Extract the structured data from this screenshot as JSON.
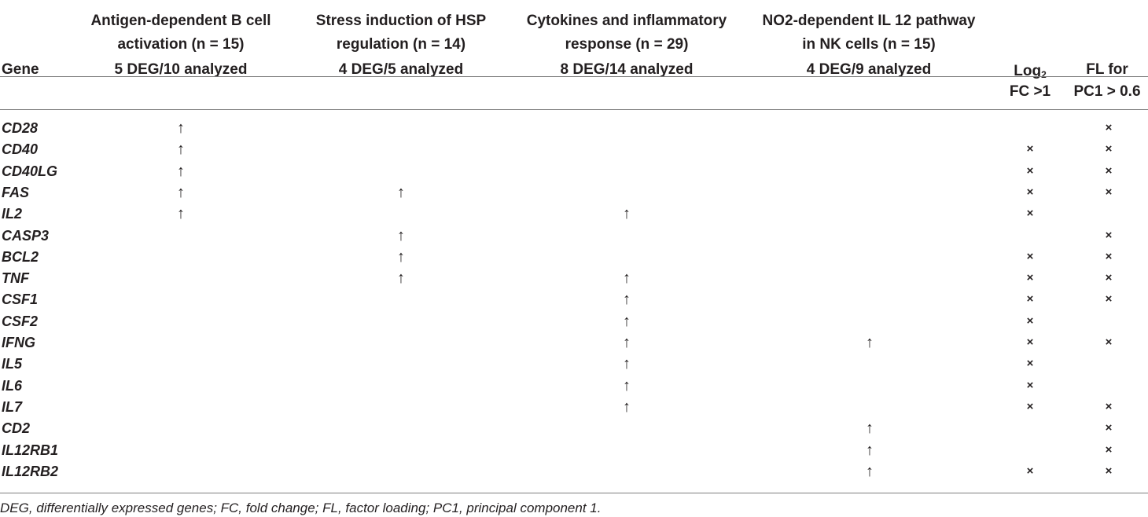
{
  "header": {
    "gene_label": "Gene",
    "columns": [
      {
        "line1": "Antigen-dependent B cell",
        "line2": "activation (n = 15)",
        "line3": "5 DEG/10 analyzed"
      },
      {
        "line1": "Stress induction of HSP",
        "line2": "regulation (n = 14)",
        "line3": "4 DEG/5 analyzed"
      },
      {
        "line1": "Cytokines and inflammatory",
        "line2": "response (n = 29)",
        "line3": "8 DEG/14 analyzed"
      },
      {
        "line1": "NO2-dependent IL 12 pathway",
        "line2": "in NK cells (n = 15)",
        "line3": "4 DEG/9 analyzed"
      }
    ],
    "log2fc": {
      "top": "Log",
      "sub": "2",
      "bottom": "FC >1"
    },
    "fl": {
      "top": "FL for",
      "bottom": "PC1 > 0.6"
    }
  },
  "symbols": {
    "up": "↑",
    "cross": "×"
  },
  "rows": [
    {
      "gene": "CD28",
      "marks": [
        true,
        false,
        false,
        false
      ],
      "log2fc": false,
      "fl": true
    },
    {
      "gene": "CD40",
      "marks": [
        true,
        false,
        false,
        false
      ],
      "log2fc": true,
      "fl": true
    },
    {
      "gene": "CD40LG",
      "marks": [
        true,
        false,
        false,
        false
      ],
      "log2fc": true,
      "fl": true
    },
    {
      "gene": "FAS",
      "marks": [
        true,
        true,
        false,
        false
      ],
      "log2fc": true,
      "fl": true
    },
    {
      "gene": "IL2",
      "marks": [
        true,
        false,
        true,
        false
      ],
      "log2fc": true,
      "fl": false
    },
    {
      "gene": "CASP3",
      "marks": [
        false,
        true,
        false,
        false
      ],
      "log2fc": false,
      "fl": true
    },
    {
      "gene": "BCL2",
      "marks": [
        false,
        true,
        false,
        false
      ],
      "log2fc": true,
      "fl": true
    },
    {
      "gene": "TNF",
      "marks": [
        false,
        true,
        true,
        false
      ],
      "log2fc": true,
      "fl": true
    },
    {
      "gene": "CSF1",
      "marks": [
        false,
        false,
        true,
        false
      ],
      "log2fc": true,
      "fl": true
    },
    {
      "gene": "CSF2",
      "marks": [
        false,
        false,
        true,
        false
      ],
      "log2fc": true,
      "fl": false
    },
    {
      "gene": "IFNG",
      "marks": [
        false,
        false,
        true,
        true
      ],
      "log2fc": true,
      "fl": true
    },
    {
      "gene": "IL5",
      "marks": [
        false,
        false,
        true,
        false
      ],
      "log2fc": true,
      "fl": false
    },
    {
      "gene": "IL6",
      "marks": [
        false,
        false,
        true,
        false
      ],
      "log2fc": true,
      "fl": false
    },
    {
      "gene": "IL7",
      "marks": [
        false,
        false,
        true,
        false
      ],
      "log2fc": true,
      "fl": true
    },
    {
      "gene": "CD2",
      "marks": [
        false,
        false,
        false,
        true
      ],
      "log2fc": false,
      "fl": true
    },
    {
      "gene": "IL12RB1",
      "marks": [
        false,
        false,
        false,
        true
      ],
      "log2fc": false,
      "fl": true
    },
    {
      "gene": "IL12RB2",
      "marks": [
        false,
        false,
        false,
        true
      ],
      "log2fc": true,
      "fl": true
    }
  ],
  "footnote": "DEG, differentially expressed genes; FC, fold change; FL, factor loading; PC1, principal component 1."
}
